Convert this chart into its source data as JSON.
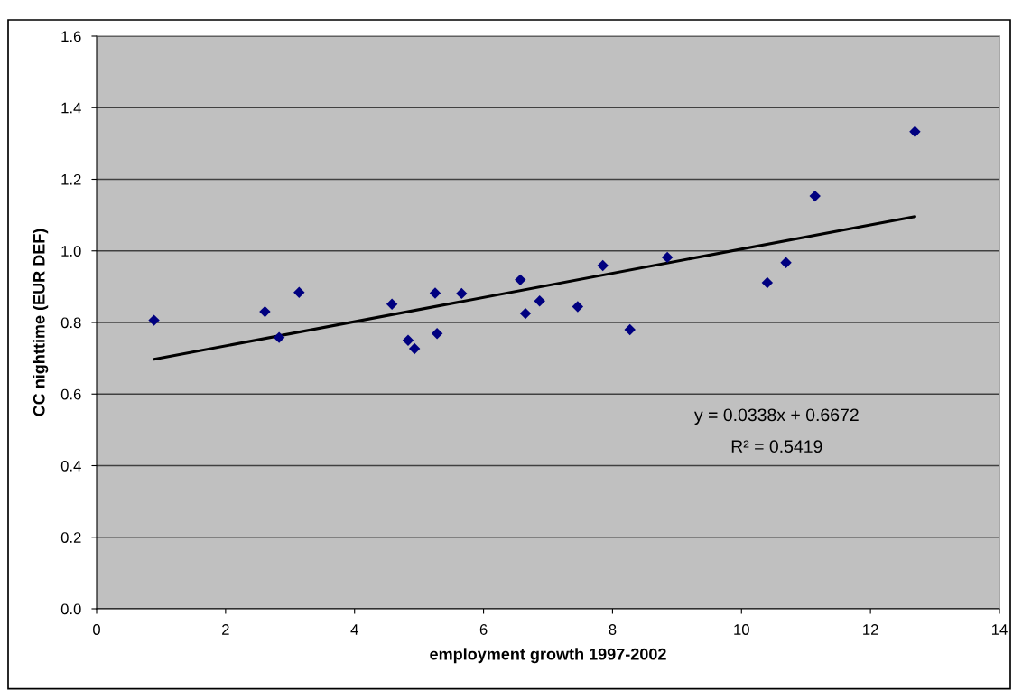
{
  "chart_data": {
    "type": "scatter",
    "xlabel": "employment growth 1997-2002",
    "ylabel": "CC nighttime (EUR DEF)",
    "xlim": [
      0,
      14
    ],
    "xticks": [
      0,
      2,
      4,
      6,
      8,
      10,
      12,
      14
    ],
    "ylim": [
      0,
      1.6
    ],
    "yticks": [
      {
        "value": 0,
        "label": "0.0"
      },
      {
        "value": 0.2,
        "label": "0.2"
      },
      {
        "value": 0.4,
        "label": "0.4"
      },
      {
        "value": 0.6,
        "label": "0.6"
      },
      {
        "value": 0.8,
        "label": "0.8"
      },
      {
        "value": 1.0,
        "label": "1.0"
      },
      {
        "value": 1.2,
        "label": "1.2"
      },
      {
        "value": 1.4,
        "label": "1.4"
      },
      {
        "value": 1.6,
        "label": "1.6"
      }
    ],
    "grid": "y",
    "legend": false,
    "series": [
      {
        "marker": "diamond",
        "color": "#000080",
        "x": [
          0.89,
          2.61,
          2.83,
          3.14,
          4.58,
          4.83,
          4.93,
          5.25,
          5.28,
          5.66,
          6.57,
          6.65,
          6.87,
          7.46,
          7.85,
          8.27,
          8.85,
          10.4,
          10.69,
          11.14,
          12.69
        ],
        "values": [
          0.806,
          0.83,
          0.758,
          0.884,
          0.851,
          0.75,
          0.727,
          0.882,
          0.769,
          0.881,
          0.919,
          0.825,
          0.86,
          0.844,
          0.959,
          0.78,
          0.982,
          0.911,
          0.967,
          1.153,
          1.333
        ]
      },
      {
        "type": "line",
        "color": "#000000",
        "line_style": "solid",
        "x": [
          0.89,
          12.69
        ],
        "values": [
          0.697,
          1.096
        ]
      }
    ],
    "annotations": [
      "y = 0.0338x + 0.6672",
      "R² = 0.5419"
    ]
  }
}
